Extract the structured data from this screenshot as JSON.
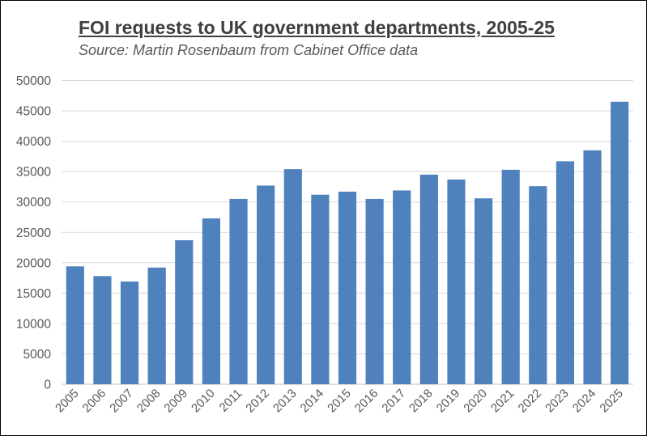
{
  "chart_data": {
    "type": "bar",
    "title": "FOI requests to UK government departments, 2005-25",
    "subtitle": "Source: Martin Rosenbaum from Cabinet Office data",
    "xlabel": "",
    "ylabel": "",
    "categories": [
      "2005",
      "2006",
      "2007",
      "2008",
      "2009",
      "2010",
      "2011",
      "2012",
      "2013",
      "2014",
      "2015",
      "2016",
      "2017",
      "2018",
      "2019",
      "2020",
      "2021",
      "2022",
      "2023",
      "2024",
      "2025"
    ],
    "values": [
      19400,
      17800,
      16900,
      19200,
      23700,
      27300,
      30500,
      32700,
      35400,
      31200,
      31700,
      30500,
      31900,
      34500,
      33700,
      30600,
      35300,
      32600,
      36700,
      38500,
      46500
    ],
    "ylim": [
      0,
      50000
    ],
    "yticks": [
      "0",
      "5000",
      "10000",
      "15000",
      "20000",
      "25000",
      "30000",
      "35000",
      "40000",
      "45000",
      "50000"
    ],
    "grid": true,
    "legend": "none",
    "bar_color": "#4f81bd",
    "grid_color": "#d9d9d9"
  }
}
